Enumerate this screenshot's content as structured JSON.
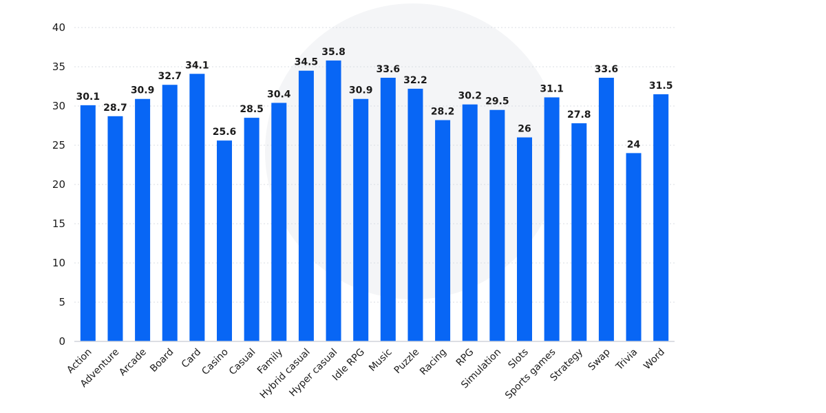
{
  "chart_data": {
    "type": "bar",
    "title": "",
    "xlabel": "",
    "ylabel": "",
    "ylim": [
      0,
      40
    ],
    "yticks": [
      0,
      5,
      10,
      15,
      20,
      25,
      30,
      35,
      40
    ],
    "grid": true,
    "bar_color": "#0866f5",
    "categories": [
      "Action",
      "Adventure",
      "Arcade",
      "Board",
      "Card",
      "Casino",
      "Casual",
      "Family",
      "Hybrid casual",
      "Hyper casual",
      "Idle RPG",
      "Music",
      "Puzzle",
      "Racing",
      "RPG",
      "Simulation",
      "Slots",
      "Sports games",
      "Strategy",
      "Swap",
      "Trivia",
      "Word"
    ],
    "values": [
      30.1,
      28.7,
      30.9,
      32.7,
      34.1,
      25.6,
      28.5,
      30.4,
      34.5,
      35.8,
      30.9,
      33.6,
      32.2,
      28.2,
      30.2,
      29.5,
      26,
      31.1,
      27.8,
      33.6,
      24,
      31.5
    ],
    "value_labels": [
      "30.1",
      "28.7",
      "30.9",
      "32.7",
      "34.1",
      "25.6",
      "28.5",
      "30.4",
      "34.5",
      "35.8",
      "30.9",
      "33.6",
      "32.2",
      "28.2",
      "30.2",
      "29.5",
      "26",
      "31.1",
      "27.8",
      "33.6",
      "24",
      "31.5"
    ]
  }
}
